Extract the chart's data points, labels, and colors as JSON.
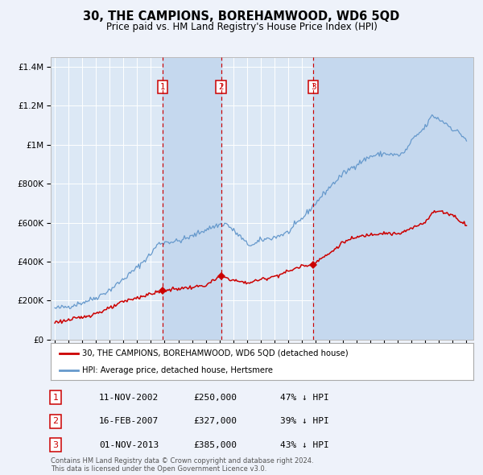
{
  "title": "30, THE CAMPIONS, BOREHAMWOOD, WD6 5QD",
  "subtitle": "Price paid vs. HM Land Registry's House Price Index (HPI)",
  "red_label": "30, THE CAMPIONS, BOREHAMWOOD, WD6 5QD (detached house)",
  "blue_label": "HPI: Average price, detached house, Hertsmere",
  "footer1": "Contains HM Land Registry data © Crown copyright and database right 2024.",
  "footer2": "This data is licensed under the Open Government Licence v3.0.",
  "transactions": [
    {
      "num": 1,
      "date": "11-NOV-2002",
      "date_dec": 2002.87,
      "price": 250000,
      "pct": "47% ↓ HPI"
    },
    {
      "num": 2,
      "date": "16-FEB-2007",
      "date_dec": 2007.12,
      "price": 327000,
      "pct": "39% ↓ HPI"
    },
    {
      "num": 3,
      "date": "01-NOV-2013",
      "date_dec": 2013.84,
      "price": 385000,
      "pct": "43% ↓ HPI"
    }
  ],
  "ylim": [
    0,
    1450000
  ],
  "xlim_start": 1994.7,
  "xlim_end": 2025.5,
  "background_color": "#eef2fa",
  "plot_bg": "#dce8f5",
  "grid_color": "#ffffff",
  "red_color": "#cc0000",
  "blue_color": "#6699cc",
  "shade_color": "#c5d8ee"
}
